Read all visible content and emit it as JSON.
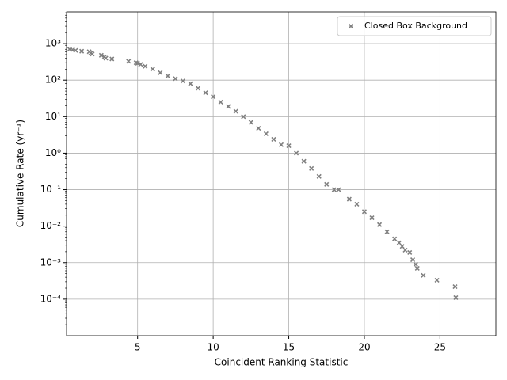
{
  "chart_data": {
    "type": "scatter",
    "xlabel": "Coincident Ranking Statistic",
    "ylabel": "Cumulative Rate (yr⁻¹)",
    "series": [
      {
        "name": "Closed Box Background",
        "color": "#808080",
        "x": [
          0.5,
          0.7,
          0.9,
          1.3,
          1.8,
          1.9,
          2.0,
          2.6,
          2.8,
          2.9,
          3.3,
          4.4,
          4.9,
          5.0,
          5.2,
          5.5,
          6.0,
          6.5,
          7.0,
          7.5,
          8.0,
          8.5,
          9.0,
          9.5,
          10.0,
          10.5,
          11.0,
          11.5,
          12.0,
          12.5,
          13.0,
          13.5,
          14.0,
          14.5,
          15.0,
          15.5,
          16.0,
          16.5,
          17.0,
          17.5,
          18.0,
          18.3,
          19.0,
          19.5,
          20.0,
          20.5,
          21.0,
          21.5,
          22.0,
          22.3,
          22.5,
          22.7,
          23.0,
          23.2,
          23.4,
          23.5,
          23.9,
          24.8,
          26.0,
          26.05
        ],
        "values": [
          700,
          680,
          650,
          620,
          600,
          550,
          520,
          480,
          430,
          400,
          380,
          330,
          300,
          290,
          270,
          240,
          200,
          160,
          130,
          110,
          95,
          80,
          60,
          45,
          35,
          25,
          19,
          14,
          10,
          7,
          4.8,
          3.4,
          2.4,
          1.7,
          1.6,
          1.0,
          0.6,
          0.38,
          0.23,
          0.14,
          0.1,
          0.1,
          0.055,
          0.04,
          0.025,
          0.017,
          0.011,
          0.007,
          0.0045,
          0.0035,
          0.0028,
          0.0022,
          0.0019,
          0.0012,
          0.0009,
          0.0007,
          0.00045,
          0.00033,
          0.00022,
          0.00011
        ]
      }
    ],
    "xlim": [
      0.3,
      28.7
    ],
    "xticks": [
      5,
      10,
      15,
      20,
      25
    ],
    "ylim": [
      1e-05,
      7400
    ],
    "ylog": true,
    "yticks": [
      {
        "value": 0.0001,
        "label": "10⁻⁴"
      },
      {
        "value": 0.001,
        "label": "10⁻³"
      },
      {
        "value": 0.01,
        "label": "10⁻²"
      },
      {
        "value": 0.1,
        "label": "10⁻¹"
      },
      {
        "value": 1,
        "label": "10⁰"
      },
      {
        "value": 10,
        "label": "10¹"
      },
      {
        "value": 100,
        "label": "10²"
      },
      {
        "value": 1000,
        "label": "10³"
      }
    ],
    "grid": true,
    "legend": "upper right"
  }
}
